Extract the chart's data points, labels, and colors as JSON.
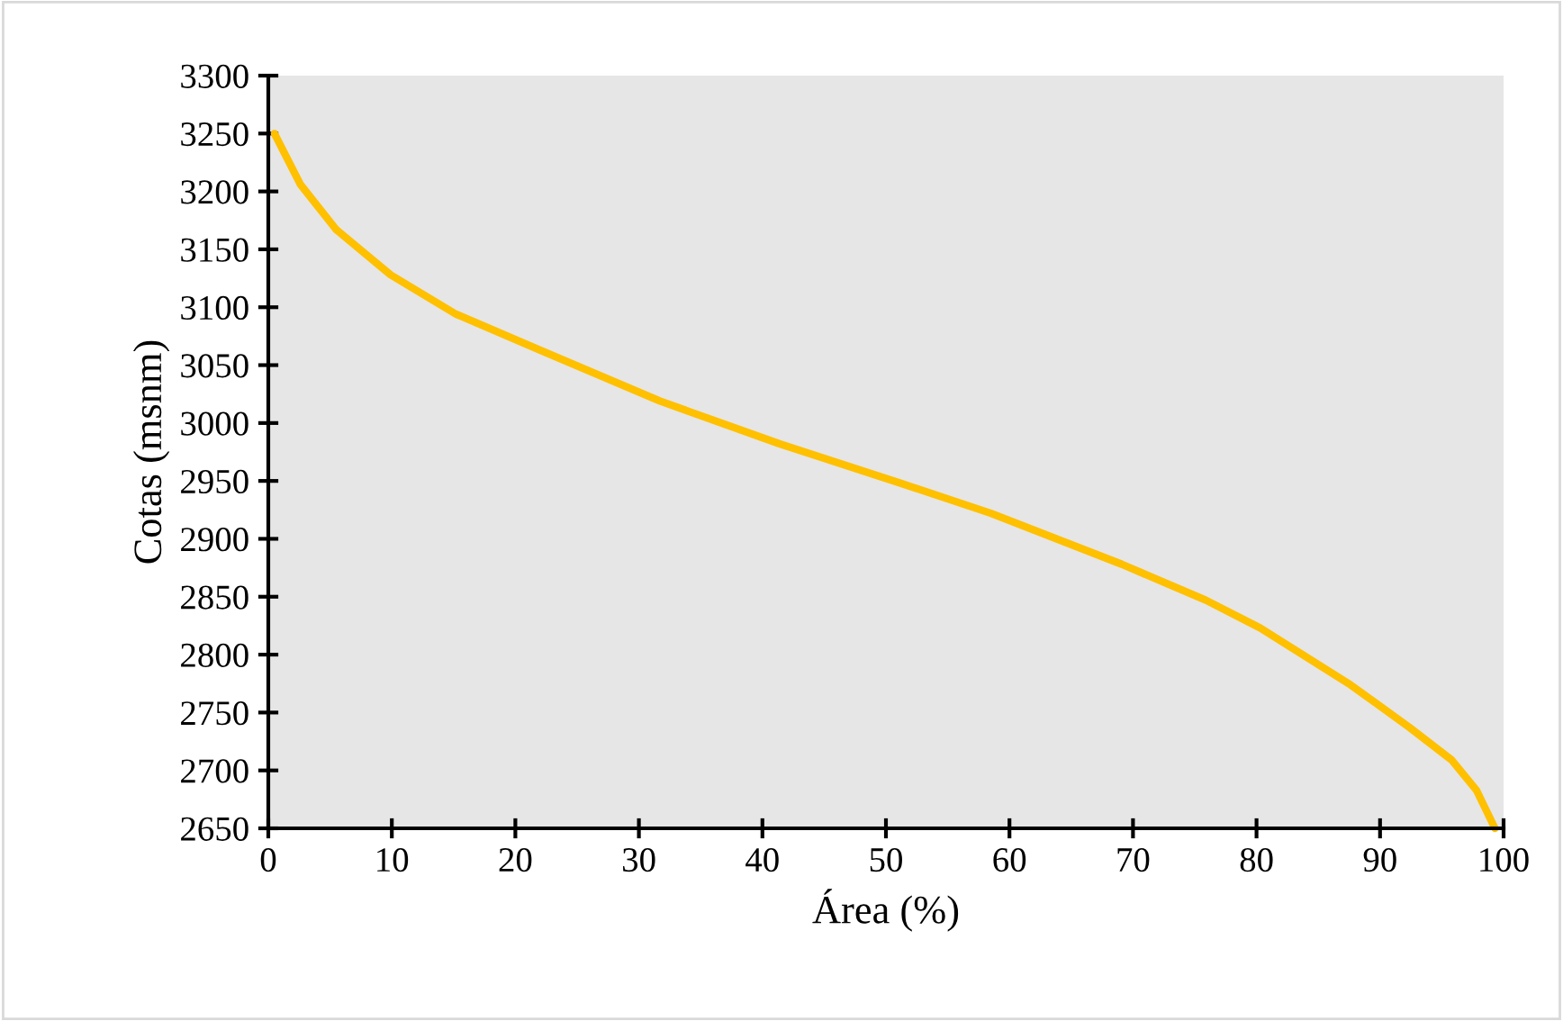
{
  "chart_data": {
    "type": "line",
    "xlabel": "Área (%)",
    "ylabel": "Cotas (msnm)",
    "xlim": [
      0,
      100
    ],
    "xticks": [
      0,
      10,
      20,
      30,
      40,
      50,
      60,
      70,
      80,
      90,
      100
    ],
    "ylim": [
      2650,
      3300
    ],
    "yticks": [
      2650,
      2700,
      2750,
      2800,
      2850,
      2900,
      2950,
      3000,
      3050,
      3100,
      3150,
      3200,
      3250,
      3300
    ],
    "grid": false,
    "legend": false,
    "marker": "none",
    "line_style": "solid",
    "series": [
      {
        "color": "#ffc000",
        "x": [
          0.5,
          2.6,
          5.5,
          9.9,
          15.2,
          22.0,
          31.7,
          41.4,
          51.2,
          58.5,
          69.1,
          75.9,
          80.3,
          87.6,
          92.4,
          95.8,
          97.8,
          99.3
        ],
        "values": [
          3250,
          3206,
          3167,
          3128,
          3094,
          3063,
          3019,
          2982,
          2948,
          2922,
          2878,
          2847,
          2823,
          2774,
          2737,
          2709,
          2683,
          2650
        ]
      }
    ]
  }
}
